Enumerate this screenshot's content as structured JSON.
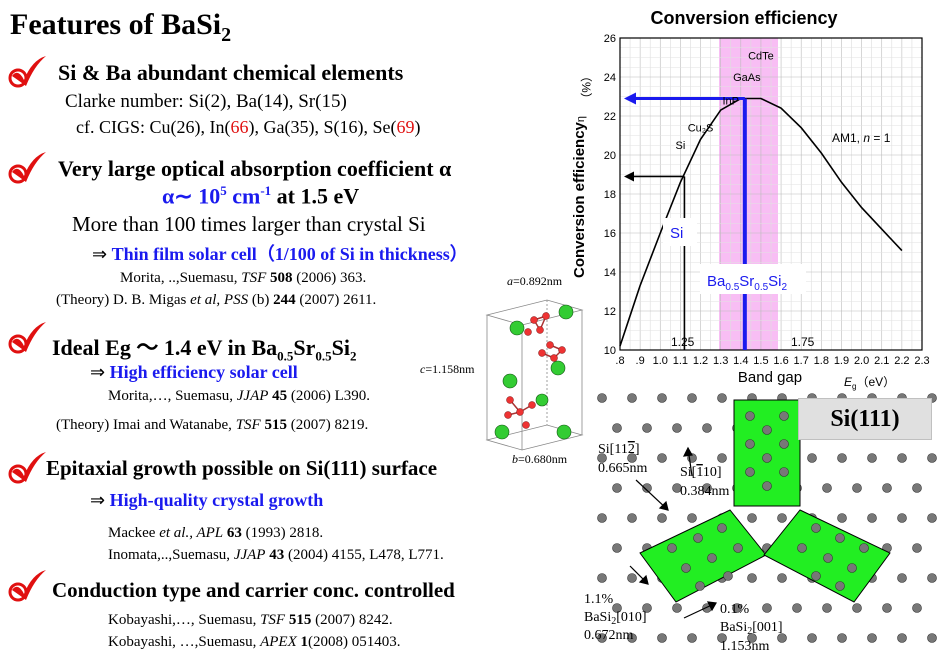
{
  "title_main": "Features of BaSi",
  "title_sub": "2",
  "s1": {
    "heading": "Si & Ba abundant chemical elements",
    "clarke": "Clarke number:   Si(2), Ba(14), Sr(15)",
    "cigs_pre": "cf. CIGS:   Cu(26), In(",
    "cigs_in": "66",
    "cigs_mid": "), Ga(35), S(16), Se(",
    "cigs_se": "69",
    "cigs_end": ")"
  },
  "s2": {
    "heading": "Very large optical absorption coefficient α",
    "alpha_pre": "α∼ 10",
    "alpha_exp": "5",
    "alpha_mid": " cm",
    "alpha_exp2": "-1",
    "alpha_end": " at 1.5 eV",
    "more": "More than 100 times larger than crystal Si",
    "arrow": "⇒ ",
    "thin": "Thin film solar cell（1/100 of Si in thickness）",
    "ref1_pre": "Morita, ..,Suemasu, ",
    "ref1_j": "TSF",
    "ref1_v": "508",
    "ref1_end": " (2006) 363.",
    "ref2_pre": "(Theory)  D. B. Migas ",
    "ref2_it": "et al",
    "ref2_j": ", PSS",
    "ref2_b": " (b) ",
    "ref2_v": "244",
    "ref2_end": " (2007) 2611."
  },
  "s3": {
    "heading_pre": "Ideal Eg ～ 1.4 eV in Ba",
    "sub1": "0.5",
    "mid": "Sr",
    "sub2": "0.5",
    "mid2": "Si",
    "sub3": "2",
    "arrow": "⇒ ",
    "high": "High efficiency solar cell",
    "ref1_pre": "Morita,…, Suemasu,  ",
    "ref1_j": "JJAP",
    "ref1_v": "45",
    "ref1_end": " (2006) L390.",
    "ref2_pre": "(Theory) Imai and  Watanabe, ",
    "ref2_j": "TSF",
    "ref2_v": "515",
    "ref2_end": " (2007) 8219."
  },
  "s4": {
    "heading": "Epitaxial growth possible on Si(111) surface",
    "arrow": "⇒ ",
    "high": "High-quality  crystal growth",
    "ref1_pre": "Mackee ",
    "ref1_it": "et al",
    "ref1_j": "., APL",
    "ref1_v": "63",
    "ref1_end": " (1993) 2818.",
    "ref2_pre": "Inomata,..,Suemasu, ",
    "ref2_j": "JJAP",
    "ref2_v": "43",
    "ref2_end": " (2004) 4155, L478, L771."
  },
  "s5": {
    "heading": "Conduction type and carrier conc. controlled",
    "ref1_pre": "Kobayashi,…, Suemasu, ",
    "ref1_j": "TSF",
    "ref1_v": "515",
    "ref1_end": " (2007) 8242.",
    "ref2_pre": "Kobayashi, …,Suemasu,  ",
    "ref2_j": "APEX",
    "ref2_v": "1",
    "ref2_end": "(2008) 051403."
  },
  "crystal": {
    "a_it": "a",
    "a": "=0.892nm",
    "c_it": "c",
    "c": "=1.158nm",
    "b_it": "b",
    "b": "=0.680nm"
  },
  "colors": {
    "accent_blue": "#1a1aee",
    "accent_red": "#e01010",
    "check_red": "#e01010",
    "highlight_pink": "#f5a8f0",
    "bz_green": "#22ee22"
  },
  "chart_data": {
    "type": "line",
    "title": "Conversion efficiency",
    "xlabel": "Band gap",
    "xlabel_unit": "E",
    "xlabel_unit_sub": "g",
    "xlabel_unit_end": "（eV）",
    "ylabel": "Conversion efficiency",
    "ylabel_sym": "η",
    "ylabel_unit": "（%）",
    "xlim": [
      0.8,
      2.3
    ],
    "ylim": [
      10,
      26
    ],
    "x_ticks": [
      ".8",
      ".9",
      "1.0",
      "1.1",
      "1.2",
      "1.3",
      "1.4",
      "1.5",
      "1.6",
      "1.7",
      "1.8",
      "1.9",
      "2.0",
      "2.1",
      "2.2",
      "2.3"
    ],
    "y_ticks": [
      "10",
      "12",
      "14",
      "16",
      "18",
      "20",
      "22",
      "24",
      "26"
    ],
    "extra_ticks": [
      "1.25",
      "1.75"
    ],
    "series": [
      {
        "name": "AM1, n=1",
        "x": [
          0.8,
          0.9,
          1.0,
          1.1,
          1.2,
          1.3,
          1.4,
          1.5,
          1.6,
          1.7,
          1.8,
          1.9,
          2.0,
          2.1,
          2.2
        ],
        "y": [
          10.2,
          13.3,
          16.0,
          18.6,
          20.8,
          22.3,
          22.9,
          22.9,
          22.4,
          21.4,
          20.1,
          18.6,
          17.3,
          16.2,
          15.1
        ]
      }
    ],
    "annotations": {
      "materials": [
        {
          "label": "CdTe",
          "x": 1.5,
          "y": 24.9
        },
        {
          "label": "GaAs",
          "x": 1.43,
          "y": 23.8
        },
        {
          "label": "InP",
          "x": 1.35,
          "y": 22.6
        },
        {
          "label": "Cu₂S",
          "x": 1.2,
          "y": 21.2
        },
        {
          "label": "Si",
          "x": 1.1,
          "y": 20.3
        }
      ],
      "curve_label": "AM1, ",
      "curve_label_n": "n",
      "curve_label_end": " = 1",
      "si_box": "Si",
      "bss_pre": "Ba",
      "bss_s1": "0.5",
      "bss_mid": "Sr",
      "bss_s2": "0.5",
      "bss_mid2": "Si",
      "bss_s3": "2",
      "highlight_range": [
        1.33,
        1.62
      ],
      "si_marker": {
        "x": 1.12,
        "y": 18.9
      },
      "bss_marker": {
        "x": 1.42,
        "y": 22.9
      }
    }
  },
  "diagram": {
    "si111": "Si(111)",
    "l1": "Si[11",
    "l1b": "2",
    "l1c": "]",
    "l1d": "0.665nm",
    "l2": "Si[",
    "l2b": "1",
    "l2c": "10]",
    "l2d": "0.384nm",
    "l3a": "1.1%",
    "l3b": "BaSi",
    "l3c": "2",
    "l3d": "[010]",
    "l3e": "0.672nm",
    "l4a": "0.1%",
    "l4b": "BaSi",
    "l4c": "2",
    "l4d": "[001]",
    "l4e": "1.153nm"
  }
}
